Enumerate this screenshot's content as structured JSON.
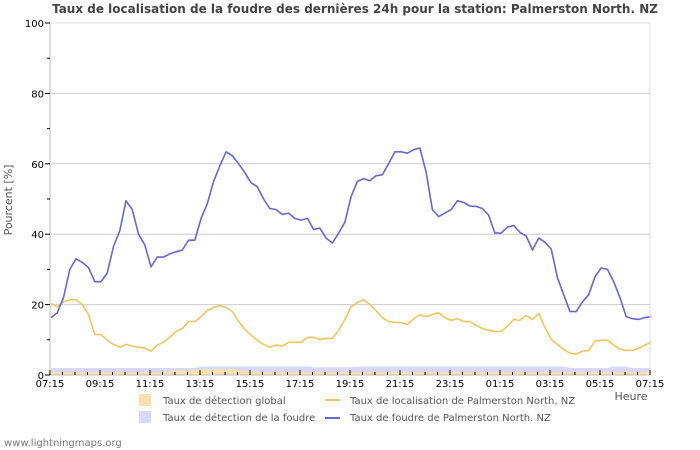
{
  "chart_data": {
    "type": "line",
    "title": "Taux de localisation de la foudre des dernières 24h pour la station: Palmerston North. NZ",
    "xlabel": "Heure",
    "ylabel": "Pourcent   [%]",
    "ylim": [
      0,
      100
    ],
    "yticks": [
      0,
      20,
      40,
      60,
      80,
      100
    ],
    "xtick_labels": [
      "07:15",
      "09:15",
      "11:15",
      "13:15",
      "15:15",
      "17:15",
      "19:15",
      "21:15",
      "23:15",
      "01:15",
      "03:15",
      "05:15",
      "07:15"
    ],
    "grid": true,
    "legend_position": "bottom",
    "x_points": 96,
    "series": [
      {
        "name": "Taux de localisation de Palmerston North. NZ",
        "kind": "line",
        "color": "#f5c45a",
        "values": [
          20.3,
          19.4,
          20.8,
          21.4,
          21.4,
          20.0,
          17.2,
          11.5,
          11.5,
          9.9,
          8.7,
          7.9,
          8.7,
          8.2,
          7.9,
          7.6,
          6.8,
          8.5,
          9.3,
          10.7,
          12.4,
          13.2,
          15.2,
          15.2,
          16.6,
          18.3,
          19.2,
          19.7,
          19.2,
          18.0,
          15.2,
          13.0,
          11.3,
          9.9,
          8.7,
          7.9,
          8.5,
          8.2,
          9.3,
          9.3,
          9.3,
          10.7,
          10.7,
          10.1,
          10.4,
          10.4,
          12.7,
          15.8,
          19.4,
          20.6,
          21.4,
          20.0,
          18.3,
          16.3,
          15.2,
          14.9,
          14.9,
          14.4,
          16.0,
          17.2,
          16.6,
          17.2,
          17.7,
          16.3,
          15.5,
          16.0,
          15.2,
          15.2,
          14.1,
          13.2,
          12.7,
          12.4,
          12.4,
          13.8,
          15.8,
          15.5,
          16.9,
          15.8,
          17.5,
          13.5,
          10.1,
          8.7,
          7.3,
          6.2,
          5.9,
          6.8,
          7.0,
          9.6,
          9.9,
          9.9,
          8.5,
          7.3,
          7.0,
          7.0,
          7.6,
          8.5,
          9.3
        ]
      },
      {
        "name": "Taux de foudre de Palmerston North. NZ",
        "kind": "line",
        "color": "#6666dd",
        "values": [
          16.3,
          17.7,
          22.0,
          30.0,
          33.0,
          32.0,
          30.5,
          26.5,
          26.5,
          29.0,
          36.5,
          41.0,
          49.5,
          47.0,
          40.0,
          37.0,
          30.7,
          33.5,
          33.5,
          34.4,
          35.0,
          35.5,
          38.3,
          38.3,
          44.5,
          48.7,
          55.0,
          59.4,
          63.4,
          62.3,
          60.0,
          57.5,
          54.6,
          53.5,
          50.0,
          47.3,
          47.0,
          45.6,
          46.0,
          44.5,
          44.0,
          44.5,
          41.4,
          41.7,
          38.9,
          37.5,
          40.3,
          43.4,
          50.7,
          55.0,
          55.8,
          55.2,
          56.6,
          56.9,
          60.0,
          63.4,
          63.4,
          63.0,
          64.0,
          64.5,
          57.5,
          47.0,
          45.0,
          46.0,
          47.0,
          49.5,
          49.0,
          48.0,
          47.9,
          47.3,
          45.4,
          40.3,
          40.3,
          42.0,
          42.5,
          40.5,
          39.5,
          35.5,
          38.9,
          37.7,
          35.8,
          27.6,
          22.8,
          18.0,
          18.0,
          20.8,
          22.8,
          27.9,
          30.4,
          30.0,
          26.5,
          22.0,
          16.6,
          16.0,
          15.8,
          16.3,
          16.6
        ]
      },
      {
        "name": "Taux de détection global",
        "kind": "area",
        "color": "#ffe0a8",
        "values": [
          0.8,
          0.8,
          0.8,
          0.8,
          0.8,
          0.8,
          0.8,
          0.8,
          0.8,
          0.8,
          0.8,
          0.8,
          0.8,
          0.8,
          0.8,
          0.8,
          0.8,
          0.8,
          0.8,
          1.0,
          1.2,
          1.2,
          1.2,
          1.4,
          1.6,
          1.6,
          1.6,
          1.6,
          1.6,
          1.6,
          1.4,
          1.2,
          1.0,
          1.0,
          0.8,
          0.8,
          0.8,
          0.8,
          0.8,
          0.8,
          0.8,
          0.8,
          0.8,
          0.8,
          0.8,
          0.8,
          0.8,
          0.8,
          0.8,
          0.8,
          0.8,
          0.8,
          0.8,
          0.8,
          0.8,
          0.8,
          0.8,
          0.8,
          0.8,
          0.8,
          0.8,
          0.8,
          0.8,
          0.8,
          0.8,
          0.8,
          0.8,
          0.8,
          0.8,
          0.8,
          0.8,
          0.8,
          0.8,
          0.8,
          0.8,
          0.8,
          0.8,
          0.8,
          0.8,
          0.8,
          0.8,
          0.8,
          0.8,
          0.8,
          0.8,
          0.8,
          0.8,
          0.8,
          0.8,
          0.8,
          0.8,
          0.8,
          0.8,
          0.8,
          0.8,
          0.8,
          0.8
        ]
      },
      {
        "name": "Taux de détection de la foudre",
        "kind": "area",
        "color": "#d8d8ff",
        "values": [
          2.0,
          2.0,
          2.0,
          2.0,
          2.0,
          2.0,
          2.0,
          2.0,
          2.0,
          2.0,
          2.0,
          2.0,
          2.0,
          2.0,
          2.0,
          2.0,
          2.0,
          2.0,
          2.0,
          2.0,
          2.0,
          2.0,
          2.0,
          2.0,
          2.4,
          2.4,
          2.4,
          2.4,
          2.4,
          2.4,
          2.4,
          2.4,
          2.4,
          2.4,
          2.4,
          2.4,
          2.4,
          2.4,
          2.4,
          2.4,
          2.4,
          2.4,
          2.2,
          2.2,
          2.2,
          2.2,
          2.2,
          2.2,
          2.2,
          2.4,
          2.4,
          2.4,
          2.4,
          2.4,
          2.4,
          2.4,
          2.4,
          2.4,
          2.4,
          2.4,
          2.4,
          2.4,
          2.4,
          2.4,
          2.4,
          2.4,
          2.4,
          2.4,
          2.4,
          2.4,
          2.4,
          2.4,
          2.4,
          2.4,
          2.4,
          2.4,
          2.4,
          2.4,
          2.4,
          2.4,
          2.4,
          2.4,
          2.4,
          2.0,
          2.0,
          2.0,
          2.0,
          2.0,
          2.0,
          2.0,
          2.4,
          2.4,
          2.4,
          2.0,
          2.0,
          2.0,
          2.0
        ]
      }
    ]
  },
  "legend": {
    "items": [
      {
        "label": "Taux de détection global",
        "type": "swatch",
        "color": "#ffe0a8"
      },
      {
        "label": "Taux de détection de la foudre",
        "type": "swatch",
        "color": "#d8d8ff"
      },
      {
        "label": "Taux de localisation de Palmerston North. NZ",
        "type": "line",
        "color": "#f5c45a"
      },
      {
        "label": "Taux de foudre de Palmerston North. NZ",
        "type": "line",
        "color": "#6666dd"
      }
    ]
  },
  "footer": {
    "credit": "www.lightningmaps.org"
  }
}
